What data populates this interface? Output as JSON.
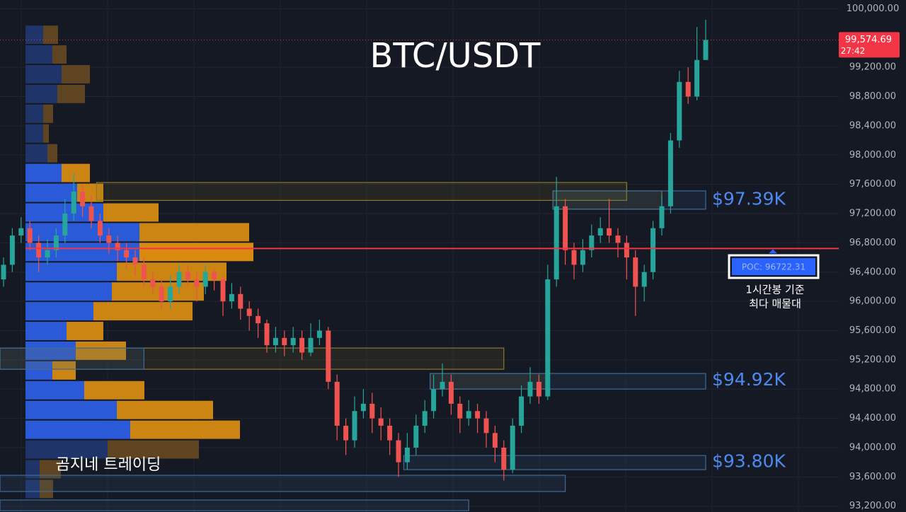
{
  "chart_data": {
    "type": "candlestick",
    "title": "BTC/USDT",
    "watermark": "곰지네 트레이딩",
    "ylim": [
      93120,
      100120
    ],
    "yticks": [
      {
        "value": 93200,
        "label": "93,200.00"
      },
      {
        "value": 93600,
        "label": "93,600.00"
      },
      {
        "value": 94000,
        "label": "94,000.00"
      },
      {
        "value": 94400,
        "label": "94,400.00"
      },
      {
        "value": 94800,
        "label": "94,800.00"
      },
      {
        "value": 95200,
        "label": "95,200.00"
      },
      {
        "value": 95600,
        "label": "95,600.00"
      },
      {
        "value": 96000,
        "label": "96,000.00"
      },
      {
        "value": 96400,
        "label": "96,400.00"
      },
      {
        "value": 96800,
        "label": "96,800.00"
      },
      {
        "value": 97200,
        "label": "97,200.00"
      },
      {
        "value": 97600,
        "label": "97,600.00"
      },
      {
        "value": 98000,
        "label": "98,000.00"
      },
      {
        "value": 98400,
        "label": "98,400.00"
      },
      {
        "value": 98800,
        "label": "98,800.00"
      },
      {
        "value": 99200,
        "label": "99,200.00"
      },
      {
        "value": 100000,
        "label": "100,000.00"
      }
    ],
    "grid": true,
    "up_color": "#26a69a",
    "down_color": "#ef5350",
    "open": [
      96300,
      96500,
      96900,
      97000,
      96800,
      96600,
      96700,
      96900,
      97200,
      97500,
      97300,
      97100,
      96900,
      96800,
      96700,
      96600,
      96500,
      96300,
      96200,
      96000,
      96200,
      96400,
      96300,
      96200,
      96400,
      96300,
      96000,
      96100,
      95900,
      95800,
      95700,
      95400,
      95500,
      95400,
      95500,
      95300,
      95500,
      95600,
      94900,
      94300,
      94100,
      94500,
      94600,
      94400,
      94300,
      94100,
      93800,
      94000,
      94300,
      94500,
      94800,
      94900,
      94600,
      94400,
      94500,
      94400,
      94200,
      94000,
      93700,
      94300,
      94700,
      94900,
      94700,
      96300,
      97300,
      96700,
      96500,
      96700,
      96900,
      97000,
      96900,
      96800,
      96600,
      96200,
      96400,
      97000,
      97300,
      98200,
      99000,
      98800,
      99300
    ],
    "high": [
      96600,
      97000,
      97150,
      97100,
      96900,
      96850,
      97000,
      97400,
      97750,
      97600,
      97450,
      97200,
      97000,
      96900,
      96800,
      96700,
      96600,
      96400,
      96300,
      96350,
      96500,
      96500,
      96400,
      96500,
      96450,
      96350,
      96250,
      96200,
      96000,
      95900,
      95750,
      95650,
      95600,
      95650,
      95600,
      95700,
      95750,
      95650,
      95000,
      94400,
      94700,
      94800,
      94750,
      94550,
      94400,
      94200,
      94200,
      94450,
      94650,
      95000,
      95150,
      95000,
      94700,
      94650,
      94600,
      94500,
      94300,
      94100,
      94400,
      94850,
      95100,
      95000,
      96500,
      97700,
      97400,
      96800,
      96850,
      97050,
      97150,
      97400,
      97000,
      96900,
      96700,
      96500,
      97100,
      97450,
      98300,
      99150,
      99200,
      99750,
      99850
    ],
    "low": [
      96200,
      96400,
      96800,
      96700,
      96400,
      96500,
      96600,
      96800,
      97100,
      97150,
      97000,
      96800,
      96650,
      96550,
      96450,
      96350,
      96200,
      96100,
      95900,
      95900,
      96100,
      96200,
      96000,
      96100,
      96150,
      95800,
      95900,
      95750,
      95600,
      95500,
      95300,
      95300,
      95250,
      95300,
      95200,
      95250,
      95400,
      94800,
      94100,
      93900,
      94000,
      94400,
      94200,
      94100,
      93900,
      93600,
      93700,
      93900,
      94200,
      94400,
      94700,
      94450,
      94200,
      94300,
      94200,
      94000,
      93800,
      93550,
      93650,
      94200,
      94600,
      94600,
      94650,
      96200,
      96500,
      96300,
      96400,
      96600,
      96800,
      96800,
      96600,
      96300,
      95800,
      96000,
      96300,
      96900,
      97200,
      98100,
      98700,
      98750,
      99300
    ],
    "close": [
      96500,
      96900,
      97000,
      96800,
      96600,
      96700,
      96900,
      97200,
      97500,
      97300,
      97100,
      96900,
      96800,
      96700,
      96600,
      96500,
      96300,
      96200,
      96000,
      96200,
      96400,
      96300,
      96200,
      96400,
      96300,
      96000,
      96100,
      95900,
      95800,
      95700,
      95400,
      95500,
      95400,
      95500,
      95300,
      95500,
      95600,
      94900,
      94300,
      94100,
      94500,
      94600,
      94400,
      94300,
      94100,
      93800,
      94000,
      94300,
      94500,
      94800,
      94900,
      94600,
      94400,
      94500,
      94400,
      94200,
      94000,
      93700,
      94300,
      94700,
      94900,
      94700,
      96300,
      97300,
      96700,
      96500,
      96700,
      96900,
      97000,
      96900,
      96800,
      96600,
      96200,
      96400,
      97000,
      97300,
      98200,
      99000,
      98800,
      99300,
      99574.69
    ],
    "volume_profile": {
      "bins": [
        93300,
        93570,
        93840,
        94110,
        94380,
        94650,
        94920,
        95190,
        95460,
        95730,
        96000,
        96270,
        96540,
        96810,
        97080,
        97350,
        97620,
        97890,
        98160,
        98430,
        98700,
        98970,
        99240,
        99510,
        99780
      ],
      "series": [
        {
          "values": [
            20,
            20,
            116,
            148,
            129,
            83,
            38,
            71,
            58,
            96,
            122,
            129,
            161,
            161,
            110,
            73,
            51,
            31,
            25,
            25,
            45,
            51,
            38,
            25
          ],
          "colors": [
            "#1f3468",
            "#1f3468",
            "#1f3468",
            "#2a5ad8",
            "#2a5ad8",
            "#2a5ad8",
            "#2a5ad8",
            "#2a5ad8",
            "#2a5ad8",
            "#2a5ad8",
            "#2a5ad8",
            "#2a5ad8",
            "#2a5ad8",
            "#2a5ad8",
            "#2a5ad8",
            "#2a5ad8",
            "#2a5ad8",
            "#1f3468",
            "#1f3468",
            "#1f3468",
            "#1f3468",
            "#1f3468",
            "#1f3468",
            "#1f3468"
          ]
        },
        {
          "values": [
            19,
            30,
            129,
            155,
            136,
            85,
            33,
            71,
            52,
            140,
            130,
            155,
            161,
            155,
            78,
            37,
            40,
            14,
            8,
            14,
            39,
            40,
            20,
            21
          ],
          "colors": [
            "#5e4420",
            "#5e4420",
            "#5e4420",
            "#cc8412",
            "#cc8412",
            "#cc8412",
            "#cc8412",
            "#cc8412",
            "#cc8412",
            "#cc8412",
            "#cc8412",
            "#cc8412",
            "#d98a0e",
            "#cc8412",
            "#cc8412",
            "#cc8412",
            "#cc8412",
            "#5e4420",
            "#5e4420",
            "#5e4420",
            "#5e4420",
            "#5e4420",
            "#5e4420",
            "#5e4420"
          ]
        }
      ]
    },
    "zones": [
      {
        "start": 11,
        "end": 71,
        "low": 97380,
        "high": 97625,
        "color": "#8a7a2a"
      },
      {
        "start": 63,
        "end": 75,
        "low": 97260,
        "high": 97510,
        "color": "#8a7a2a"
      },
      {
        "start": 63,
        "end": 80,
        "low": 97260,
        "high": 97510,
        "color": "#3d6b9a",
        "label": "$97.39K",
        "value": 97390
      },
      {
        "start": 0,
        "end": 57,
        "low": 95072,
        "high": 95362,
        "color": "#8a7a2a"
      },
      {
        "start": 0,
        "end": 16,
        "low": 95072,
        "high": 95362,
        "color": "#3d6b9a"
      },
      {
        "start": 49,
        "end": 62,
        "low": 94801,
        "high": 95014,
        "color": "#8a7a2a"
      },
      {
        "start": 49,
        "end": 80,
        "low": 94801,
        "high": 95014,
        "color": "#3d6b9a",
        "label": "$94.92K",
        "value": 94920
      },
      {
        "start": 46,
        "end": 80,
        "low": 93699,
        "high": 93892,
        "color": "#3d6b9a",
        "label": "$93.80K",
        "value": 93800
      },
      {
        "start": 0,
        "end": 64,
        "low": 93400,
        "high": 93622,
        "color": "#3d6b9a"
      },
      {
        "start": 0,
        "end": 53,
        "low": 93138,
        "high": 93284,
        "color": "#3d6b9a"
      }
    ],
    "poc": {
      "value": 96722.31,
      "label": "POC: 96722.31",
      "note": [
        "1시간봉 기준",
        "최다 매물대"
      ],
      "color": "#f23645"
    },
    "last_price": {
      "value": 99574.69,
      "label": "99,574.69",
      "countdown": "27:42",
      "color": "#f23645"
    }
  }
}
